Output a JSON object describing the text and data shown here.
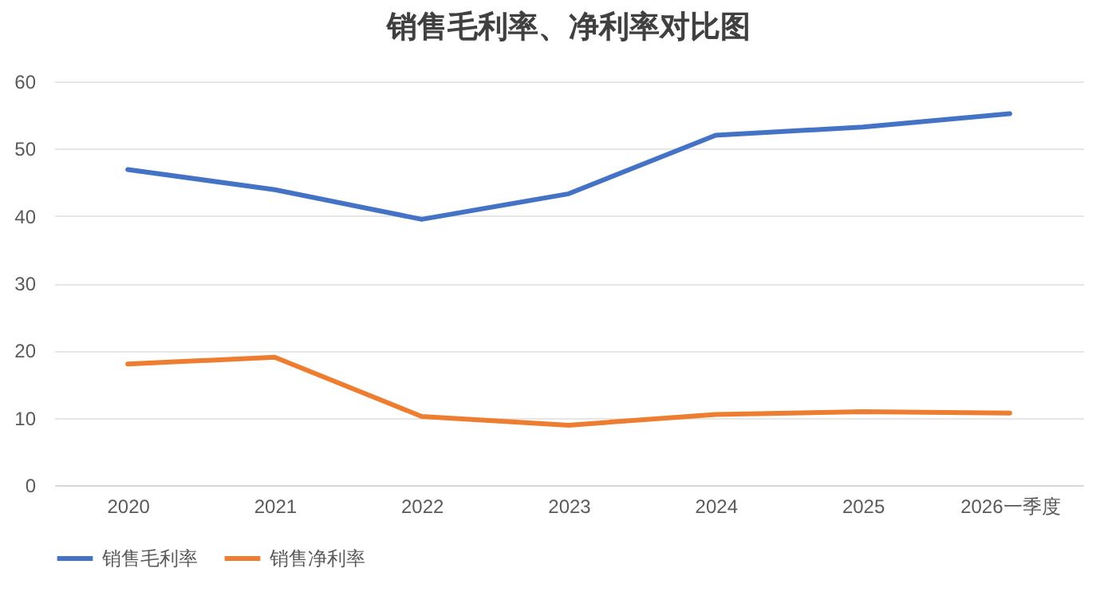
{
  "chart_data": {
    "type": "line",
    "title": "销售毛利率、净利率对比图",
    "categories": [
      "2020",
      "2021",
      "2022",
      "2023",
      "2024",
      "2025",
      "2026一季度"
    ],
    "series": [
      {
        "name": "销售毛利率",
        "color": "#4472c4",
        "values": [
          46.9,
          43.9,
          39.5,
          43.3,
          52.0,
          53.2,
          55.2
        ]
      },
      {
        "name": "销售净利率",
        "color": "#ed7d31",
        "values": [
          18.0,
          19.0,
          10.2,
          8.9,
          10.5,
          10.9,
          10.7
        ]
      }
    ],
    "ylim": [
      0,
      60
    ],
    "yticks": [
      0,
      10,
      20,
      30,
      40,
      50,
      60
    ],
    "grid": "y",
    "legend": "bottom",
    "marker": "none",
    "line_style": "solid"
  }
}
